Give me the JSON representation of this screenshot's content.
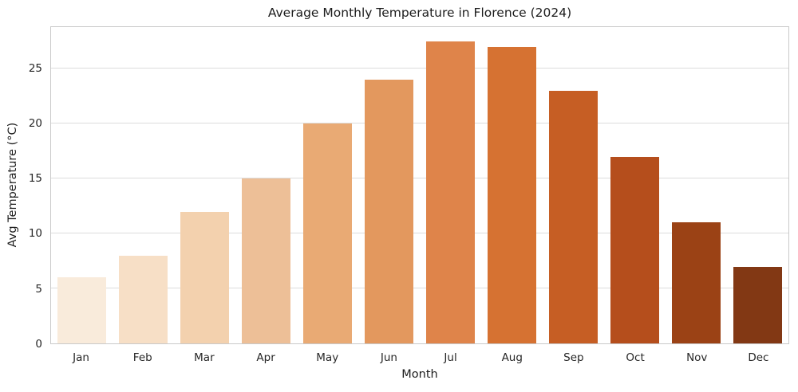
{
  "chart_data": {
    "type": "bar",
    "title": "Average Monthly Temperature in Florence (2024)",
    "xlabel": "Month",
    "ylabel": "Avg Temperature (°C)",
    "categories": [
      "Jan",
      "Feb",
      "Mar",
      "Apr",
      "May",
      "Jun",
      "Jul",
      "Aug",
      "Sep",
      "Oct",
      "Nov",
      "Dec"
    ],
    "values": [
      6,
      8,
      12,
      15,
      20,
      24,
      27.5,
      27,
      23,
      17,
      11,
      7
    ],
    "bar_colors": [
      "#f9ebdb",
      "#f7dfc6",
      "#f3d1ae",
      "#edbf97",
      "#e9aa74",
      "#e3985e",
      "#df844a",
      "#d67232",
      "#c65e24",
      "#b54e1c",
      "#9b4215",
      "#823814"
    ],
    "y_ticks": [
      0,
      5,
      10,
      15,
      20,
      25
    ],
    "ylim": [
      0,
      28.8
    ],
    "bar_width_fraction": 0.8,
    "grid": "horizontal",
    "legend": "none",
    "background_color": "#ffffff",
    "grid_color": "#dcdcdc",
    "axis_edge_color": "#c9c9c9",
    "text_color": "#262626"
  }
}
